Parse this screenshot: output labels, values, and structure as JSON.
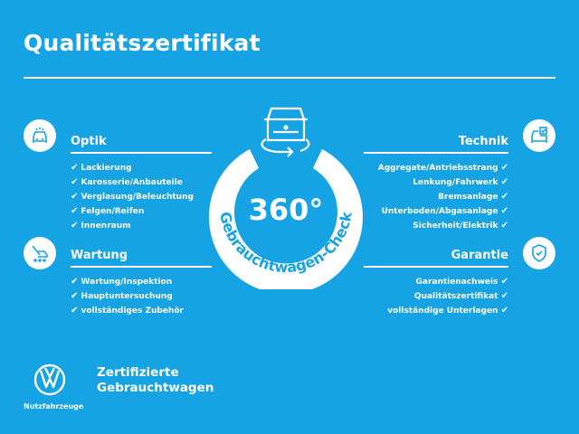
{
  "title": "Qualitätszertifikat",
  "center": {
    "degrees": "360°",
    "ring_text": "Gebrauchtwagen-Check"
  },
  "sections": {
    "optik": {
      "heading": "Optik",
      "icon": "car-front-icon",
      "items": [
        "Lackierung",
        "Karosserie/Anbauteile",
        "Verglasung/Beleuchtung",
        "Felgen/Reifen",
        "Innenraum"
      ]
    },
    "wartung": {
      "heading": "Wartung",
      "icon": "maintenance-van-icon",
      "items": [
        "Wartung/Inspektion",
        "Hauptuntersuchung",
        "vollständiges Zubehör"
      ]
    },
    "technik": {
      "heading": "Technik",
      "icon": "car-checklist-icon",
      "items": [
        "Aggregate/Antriebsstrang",
        "Lenkung/Fahrwerk",
        "Bremsanlage",
        "Unterboden/Abgasanlage",
        "Sicherheit/Elektrik"
      ]
    },
    "garantie": {
      "heading": "Garantie",
      "icon": "shield-check-icon",
      "items": [
        "Garantienachweis",
        "Qualitätszertifikat",
        "vollständige Unterlagen"
      ]
    }
  },
  "check_mark": "✔",
  "footer": {
    "brand_line1": "Zertifizierte",
    "brand_line2": "Gebrauchtwagen",
    "logo_caption": "Nutzfahrzeuge"
  },
  "colors": {
    "background": "#15a3e4",
    "foreground": "#ffffff"
  }
}
